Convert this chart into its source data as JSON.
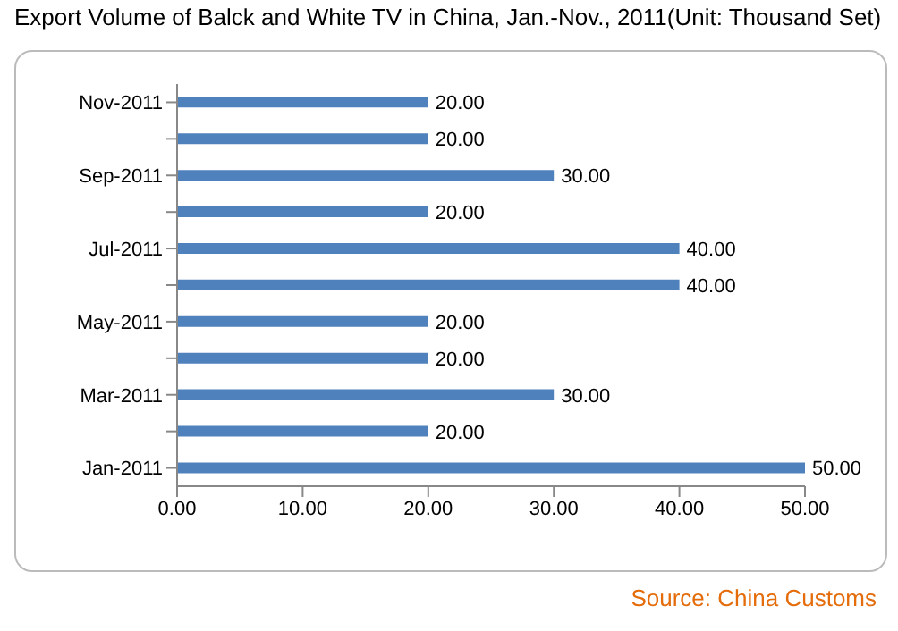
{
  "chart_data": {
    "type": "bar",
    "orientation": "horizontal",
    "title": "Export Volume of Balck and White TV in China, Jan.-Nov., 2011(Unit:  Thousand Set)",
    "categories": [
      "Nov-2011",
      null,
      "Sep-2011",
      null,
      "Jul-2011",
      null,
      "May-2011",
      null,
      "Mar-2011",
      null,
      "Jan-2011"
    ],
    "values": [
      20,
      20,
      30,
      20,
      40,
      40,
      20,
      20,
      30,
      20,
      50
    ],
    "value_labels": [
      "20.00",
      "20.00",
      "30.00",
      "20.00",
      "40.00",
      "40.00",
      "20.00",
      "20.00",
      "30.00",
      "20.00",
      "50.00"
    ],
    "color": "#4f81bd",
    "xlim": [
      0,
      50
    ],
    "xticks": [
      {
        "value": 0,
        "label": "0.00"
      },
      {
        "value": 10,
        "label": "10.00"
      },
      {
        "value": 20,
        "label": "20.00"
      },
      {
        "value": 30,
        "label": "30.00"
      },
      {
        "value": 40,
        "label": "40.00"
      },
      {
        "value": 50,
        "label": "50.00"
      }
    ],
    "annotations": [
      "Source:  China Customs"
    ]
  }
}
